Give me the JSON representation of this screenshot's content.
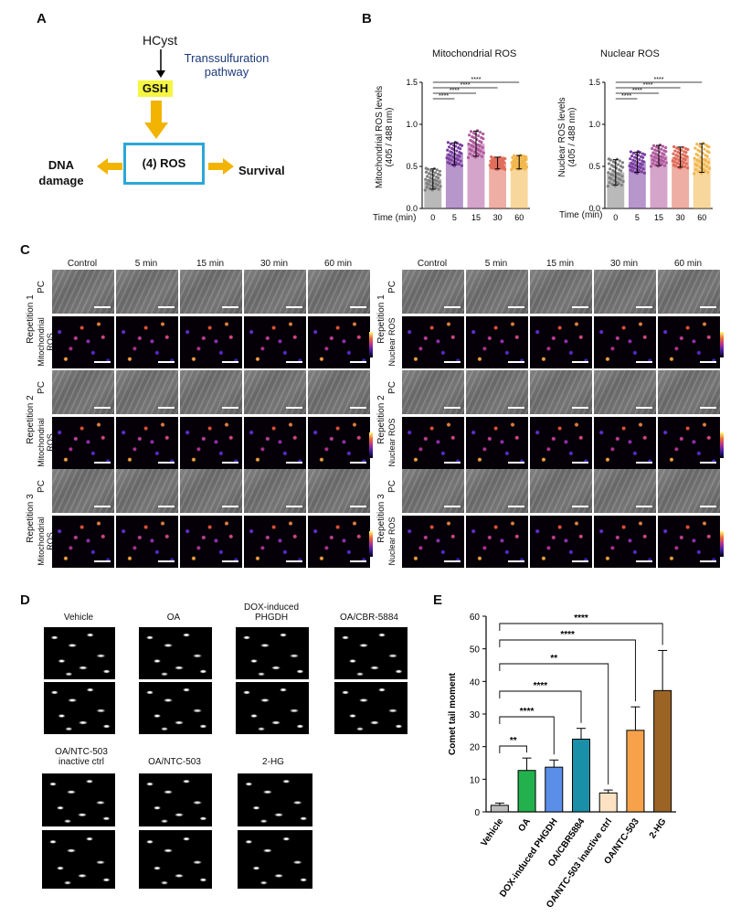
{
  "panels": {
    "A": "A",
    "B": "B",
    "C": "C",
    "D": "D",
    "E": "E"
  },
  "panelA": {
    "hcyst": "HCyst",
    "transsulfuration": "Transsulfuration",
    "pathway": "pathway",
    "gsh": "GSH",
    "ros": "(4) ROS",
    "dna_line1": "DNA",
    "dna_line2": "damage",
    "survival": "Survival",
    "colors": {
      "gsh_bg": "#f5f542",
      "arrow": "#f2b400",
      "box": "#2aa7d8",
      "pathway_text": "#1d3a7a"
    }
  },
  "panelB": {
    "time_label": "Time (min)",
    "sig": "****",
    "mito": {
      "title": "Mitochondrial ROS",
      "ylabel_line1": "Mitochondrial ROS levels",
      "ylabel_line2": "(405 / 488 nm)"
    },
    "nuc": {
      "title": "Nuclear ROS",
      "ylabel_line1": "Nuclear ROS levels",
      "ylabel_line2": "(405 / 488 nm)"
    }
  },
  "chart_data": [
    {
      "type": "bar",
      "title": "Mitochondrial ROS",
      "xlabel": "Time (min)",
      "ylabel": "Mitochondrial ROS levels (405 / 488 nm)",
      "categories": [
        "0",
        "5",
        "15",
        "30",
        "60"
      ],
      "values": [
        0.35,
        0.65,
        0.77,
        0.54,
        0.55
      ],
      "errors": [
        0.12,
        0.13,
        0.15,
        0.07,
        0.08
      ],
      "ylim": [
        0.0,
        1.5
      ],
      "yticks": [
        "0.0",
        "0.5",
        "1.0",
        "1.5"
      ],
      "colors": [
        "#808080",
        "#7b3fa0",
        "#b15a9e",
        "#e06c5a",
        "#f2b64a"
      ],
      "significance": [
        [
          "0",
          "5",
          "****"
        ],
        [
          "0",
          "15",
          "****"
        ],
        [
          "0",
          "30",
          "****"
        ],
        [
          "0",
          "60",
          "****"
        ]
      ]
    },
    {
      "type": "bar",
      "title": "Nuclear ROS",
      "xlabel": "Time (min)",
      "ylabel": "Nuclear ROS levels (405 / 488 nm)",
      "categories": [
        "0",
        "5",
        "15",
        "30",
        "60"
      ],
      "values": [
        0.43,
        0.55,
        0.63,
        0.61,
        0.6
      ],
      "errors": [
        0.15,
        0.12,
        0.12,
        0.12,
        0.17
      ],
      "ylim": [
        0.0,
        1.5
      ],
      "yticks": [
        "0.0",
        "0.5",
        "1.0",
        "1.5"
      ],
      "colors": [
        "#808080",
        "#7b3fa0",
        "#b15a9e",
        "#e06c5a",
        "#f2b64a"
      ],
      "significance": [
        [
          "0",
          "5",
          "****"
        ],
        [
          "0",
          "15",
          "****"
        ],
        [
          "0",
          "30",
          "****"
        ],
        [
          "0",
          "60",
          "****"
        ]
      ]
    },
    {
      "type": "bar",
      "title": "",
      "xlabel": "",
      "ylabel": "Comet tail moment",
      "categories": [
        "Vehicle",
        "OA",
        "DOX-induced PHGDH",
        "OA/CBR5884",
        "OA/NTC-503 inactive ctrl",
        "OA/NTC-503",
        "2-HG"
      ],
      "values": [
        2,
        12.7,
        13.7,
        22.3,
        5.8,
        25,
        37.2
      ],
      "errors": [
        0.7,
        3.8,
        2.2,
        3.3,
        0.9,
        7.2,
        12.3
      ],
      "ylim": [
        0,
        60
      ],
      "yticks": [
        "0",
        "10",
        "20",
        "30",
        "40",
        "50",
        "60"
      ],
      "colors": [
        "#bdbdbd",
        "#22b14c",
        "#5a8ee8",
        "#1a8fa8",
        "#fde3c4",
        "#f7a24a",
        "#9b6425"
      ],
      "significance": [
        [
          "Vehicle",
          "OA",
          "**"
        ],
        [
          "Vehicle",
          "DOX-induced PHGDH",
          "****"
        ],
        [
          "Vehicle",
          "OA/CBR5884",
          "****"
        ],
        [
          "Vehicle",
          "OA/NTC-503 inactive ctrl",
          "**"
        ],
        [
          "Vehicle",
          "OA/NTC-503",
          "****"
        ],
        [
          "Vehicle",
          "2-HG",
          "****"
        ]
      ]
    }
  ],
  "panelC": {
    "cols": [
      "Control",
      "5 min",
      "15 min",
      "30 min",
      "60 min"
    ],
    "reps": [
      "Repetition 1",
      "Repetition 2",
      "Repetition 3"
    ],
    "pc": "PC",
    "mito_line1": "Mitochondrial",
    "mito_line2": "ROS",
    "nuc": "Nuclear ROS"
  },
  "panelD": {
    "vehicle": "Vehicle",
    "oa": "OA",
    "dox_line1": "DOX-induced",
    "dox_line2": "PHGDH",
    "cbr": "OA/CBR-5884",
    "ntc_inact_line1": "OA/NTC-503",
    "ntc_inact_line2": "inactive ctrl",
    "ntc": "OA/NTC-503",
    "hg": "2-HG"
  }
}
